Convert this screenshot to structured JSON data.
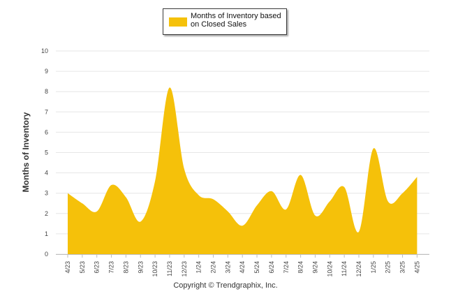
{
  "legend": {
    "label": "Months of Inventory based on Closed Sales",
    "color": "#F5C10A"
  },
  "ylabel": "Months of Inventory",
  "footer": "Copyright © Trendgraphix, Inc.",
  "chart_data": {
    "type": "area",
    "title": "",
    "xlabel": "",
    "ylabel": "Months of Inventory",
    "ylim": [
      0,
      10
    ],
    "yticks": [
      0,
      1,
      2,
      3,
      4,
      5,
      6,
      7,
      8,
      9,
      10
    ],
    "grid": true,
    "legend_position": "top-center",
    "categories": [
      "4/23",
      "5/23",
      "6/23",
      "7/23",
      "8/23",
      "9/23",
      "10/23",
      "11/23",
      "12/23",
      "1/24",
      "2/24",
      "3/24",
      "4/24",
      "5/24",
      "6/24",
      "7/24",
      "8/24",
      "9/24",
      "10/24",
      "11/24",
      "12/24",
      "1/25",
      "2/25",
      "3/25",
      "4/25"
    ],
    "series": [
      {
        "name": "Months of Inventory based on Closed Sales",
        "color": "#F5C10A",
        "values": [
          3.0,
          2.5,
          2.1,
          3.4,
          2.8,
          1.6,
          3.6,
          8.2,
          4.2,
          2.9,
          2.7,
          2.1,
          1.4,
          2.4,
          3.1,
          2.2,
          3.9,
          1.9,
          2.6,
          3.3,
          1.1,
          5.2,
          2.6,
          3.0,
          3.8
        ]
      }
    ]
  }
}
